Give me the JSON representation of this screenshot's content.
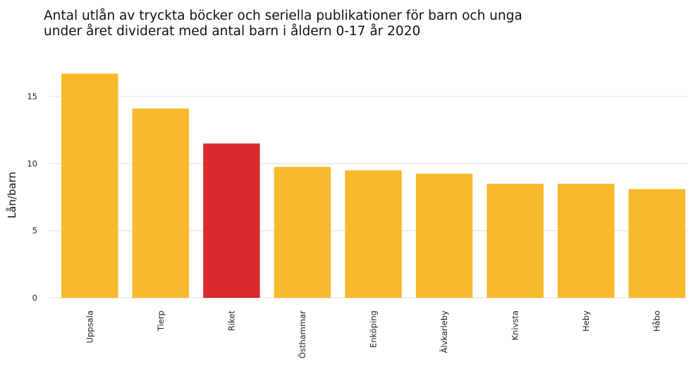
{
  "title_line1": "Antal utlån av tryckta böcker och seriella publikationer för barn och unga",
  "title_line2": "under året dividerat med antal barn i åldern 0-17 år 2020",
  "chart_data": {
    "type": "bar",
    "title": "Antal utlån av tryckta böcker och seriella publikationer för barn och unga under året dividerat med antal barn i åldern 0-17 år 2020",
    "xlabel": "",
    "ylabel": "Lån/barn",
    "categories": [
      "Uppsala",
      "Tierp",
      "Riket",
      "Östhammar",
      "Enköping",
      "Älvkarleby",
      "Knivsta",
      "Heby",
      "Håbo"
    ],
    "values": [
      16.7,
      14.1,
      11.5,
      9.75,
      9.5,
      9.25,
      8.5,
      8.5,
      8.1
    ],
    "highlight": "Riket",
    "colors": {
      "default": "#F7BA2C",
      "highlight": "#DB2A2E",
      "grid": "#E5E5E5"
    },
    "ylim": [
      0,
      17.5
    ],
    "yticks": [
      0,
      5,
      10,
      15
    ],
    "grid": true,
    "legend": "none"
  }
}
